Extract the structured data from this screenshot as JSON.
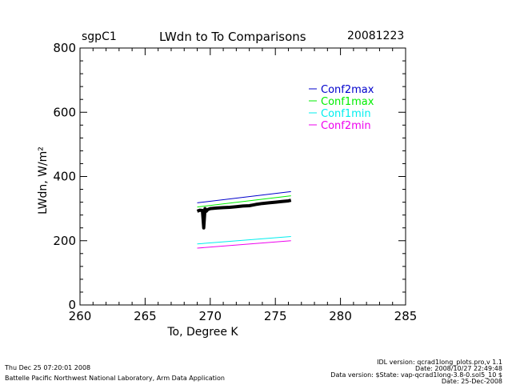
{
  "header": {
    "site": "sgpC1",
    "title": "LWdn to To Comparisons",
    "date": "20081223"
  },
  "footer": {
    "timestamp": "Thu Dec 25 07:20:01 2008",
    "lab": "Battelle Pacific Northwest National Laboratory, Arm Data Application",
    "idl_version": "IDL version: qcrad1long_plots.pro,v 1.1",
    "idl_date": "Date: 2008/10/27 22:49:48",
    "data_version": "Data version: $State: vap-qcrad1long-3.8-0.sol5_10 $",
    "data_date": "Date: 25-Dec-2008"
  },
  "colors": {
    "Conf2max": "#0000cc",
    "Conf1max": "#00ee00",
    "Conf1min": "#00eeee",
    "Conf2min": "#ee00ee",
    "observed": "#000000"
  },
  "chart_data": {
    "type": "line",
    "title": "LWdn to To Comparisons",
    "xlabel": "To, Degree K",
    "ylabel": "LWdn, W/m²",
    "xlim": [
      260,
      285
    ],
    "ylim": [
      0,
      800
    ],
    "xticks": [
      260,
      265,
      270,
      275,
      280,
      285
    ],
    "yticks": [
      0,
      200,
      400,
      600,
      800
    ],
    "legend_position": "top-right",
    "series": [
      {
        "name": "Conf2max",
        "x": [
          269.0,
          276.2
        ],
        "y": [
          318,
          353
        ]
      },
      {
        "name": "Conf1max",
        "x": [
          269.0,
          276.2
        ],
        "y": [
          305,
          340
        ]
      },
      {
        "name": "Conf1min",
        "x": [
          269.0,
          276.2
        ],
        "y": [
          190,
          213
        ]
      },
      {
        "name": "Conf2min",
        "x": [
          269.0,
          276.2
        ],
        "y": [
          177,
          200
        ]
      }
    ],
    "observed": {
      "x": [
        269.0,
        269.2,
        269.4,
        269.5,
        269.6,
        269.7,
        269.8,
        270.0,
        270.5,
        271.0,
        271.5,
        272.0,
        272.5,
        273.0,
        273.5,
        274.0,
        274.5,
        275.0,
        275.5,
        276.0,
        276.2
      ],
      "y": [
        292,
        295,
        294,
        240,
        300,
        292,
        297,
        300,
        302,
        303,
        304,
        306,
        308,
        309,
        313,
        316,
        318,
        320,
        322,
        324,
        326
      ]
    }
  }
}
